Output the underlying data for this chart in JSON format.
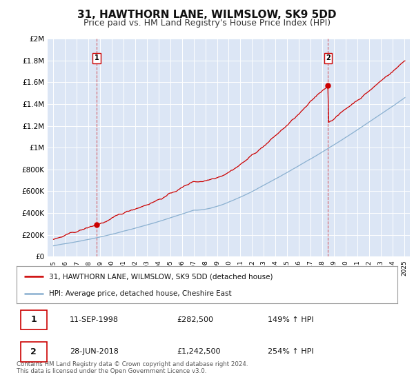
{
  "title": "31, HAWTHORN LANE, WILMSLOW, SK9 5DD",
  "subtitle": "Price paid vs. HM Land Registry's House Price Index (HPI)",
  "title_fontsize": 11,
  "subtitle_fontsize": 9,
  "plot_bg_color": "#dce6f5",
  "fig_bg_color": "#ffffff",
  "grid_color": "#ffffff",
  "red_line_color": "#cc0000",
  "blue_line_color": "#8ab0d0",
  "ylim": [
    0,
    2000000
  ],
  "yticks": [
    0,
    200000,
    400000,
    600000,
    800000,
    1000000,
    1200000,
    1400000,
    1600000,
    1800000,
    2000000
  ],
  "ytick_labels": [
    "£0",
    "£200K",
    "£400K",
    "£600K",
    "£800K",
    "£1M",
    "£1.2M",
    "£1.4M",
    "£1.6M",
    "£1.8M",
    "£2M"
  ],
  "xlim_start": 1994.5,
  "xlim_end": 2025.5,
  "xtick_years": [
    1995,
    1996,
    1997,
    1998,
    1999,
    2000,
    2001,
    2002,
    2003,
    2004,
    2005,
    2006,
    2007,
    2008,
    2009,
    2010,
    2011,
    2012,
    2013,
    2014,
    2015,
    2016,
    2017,
    2018,
    2019,
    2020,
    2021,
    2022,
    2023,
    2024,
    2025
  ],
  "transaction1": {
    "year": 1998.7,
    "price": 282500,
    "label": "1",
    "date": "11-SEP-1998",
    "amount": "£282,500",
    "hpi_pct": "149% ↑ HPI"
  },
  "transaction2": {
    "year": 2018.5,
    "price": 1242500,
    "label": "2",
    "date": "28-JUN-2018",
    "amount": "£1,242,500",
    "hpi_pct": "254% ↑ HPI"
  },
  "legend_entry1": "31, HAWTHORN LANE, WILMSLOW, SK9 5DD (detached house)",
  "legend_entry2": "HPI: Average price, detached house, Cheshire East",
  "footer": "Contains HM Land Registry data © Crown copyright and database right 2024.\nThis data is licensed under the Open Government Licence v3.0."
}
